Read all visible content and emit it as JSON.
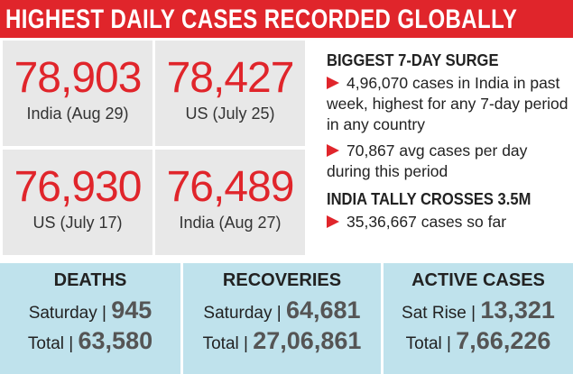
{
  "header": {
    "title": "HIGHEST DAILY CASES RECORDED GLOBALLY"
  },
  "tiles": [
    {
      "number": "78,903",
      "label": "India (Aug 29)"
    },
    {
      "number": "78,427",
      "label": "US (July 25)"
    },
    {
      "number": "76,930",
      "label": "US (July 17)"
    },
    {
      "number": "76,489",
      "label": "India (Aug 27)"
    }
  ],
  "side": {
    "heading1": "BIGGEST 7-DAY SURGE",
    "bullets1": [
      "4,96,070 cases in India in past week, highest for any 7-day period in any country",
      "70,867 avg cases per day during this period"
    ],
    "heading2": "INDIA TALLY CROSSES 3.5M",
    "bullets2": [
      "35,36,667 cases so far"
    ]
  },
  "stats": [
    {
      "heading": "DEATHS",
      "rows": [
        {
          "label": "Saturday |",
          "value": "945"
        },
        {
          "label": "Total |",
          "value": "63,580"
        }
      ]
    },
    {
      "heading": "RECOVERIES",
      "rows": [
        {
          "label": "Saturday |",
          "value": "64,681"
        },
        {
          "label": "Total |",
          "value": "27,06,861"
        }
      ]
    },
    {
      "heading": "ACTIVE CASES",
      "rows": [
        {
          "label": "Sat Rise |",
          "value": "13,321"
        },
        {
          "label": "Total |",
          "value": "7,66,226"
        }
      ]
    }
  ]
}
